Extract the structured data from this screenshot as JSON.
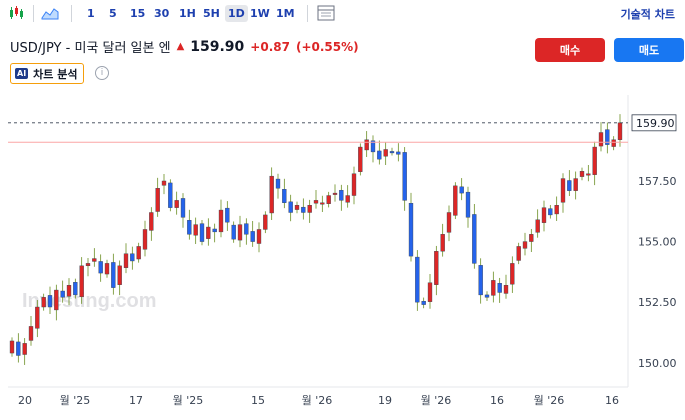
{
  "toolbar": {
    "timeframes": [
      "1",
      "5",
      "15",
      "30",
      "1H",
      "5H",
      "1D",
      "1W",
      "1M"
    ],
    "active_timeframe": "1D",
    "advanced_chart": "기술적 차트"
  },
  "symbol": {
    "name": "USD/JPY - 미국 달러 일본 엔",
    "price": "159.90",
    "change": "+0.87",
    "change_pct": "(+0.55%)"
  },
  "actions": {
    "buy": "매수",
    "sell": "매도"
  },
  "ai": {
    "badge": "AI",
    "label": "차트 분석"
  },
  "watermark": "Investing.com",
  "colors": {
    "up": "#dc2626",
    "down": "#2563eb",
    "buy": "#dc2626",
    "sell": "#1877f2",
    "last_line": "#fca5a5"
  },
  "chart_data": {
    "type": "candlestick",
    "y_ticks": [
      "157.50",
      "155.00",
      "152.50",
      "150.00"
    ],
    "y_range": [
      149.0,
      160.8
    ],
    "last_price_label": "159.90",
    "x_ticks": [
      "20",
      "월 '25",
      "17",
      "월 '25",
      "15",
      "월 '26",
      "19",
      "월 '26",
      "16",
      "월 '26",
      "16"
    ],
    "closes": [
      150.9,
      150.3,
      150.8,
      151.5,
      152.3,
      152.7,
      152.3,
      153.0,
      152.7,
      153.2,
      152.8,
      154.0,
      154.1,
      154.3,
      153.7,
      154.1,
      153.1,
      154.0,
      154.5,
      154.2,
      154.8,
      155.5,
      156.2,
      157.2,
      157.5,
      156.4,
      156.7,
      156.0,
      155.3,
      155.7,
      155.0,
      155.6,
      155.4,
      156.3,
      155.8,
      155.1,
      155.7,
      155.3,
      155.0,
      155.5,
      156.1,
      157.7,
      157.2,
      156.6,
      156.2,
      156.5,
      156.2,
      156.5,
      156.7,
      156.6,
      156.9,
      157.0,
      156.7,
      156.9,
      157.8,
      158.9,
      159.2,
      158.7,
      158.4,
      158.8,
      158.7,
      158.6,
      156.7,
      154.4,
      152.5,
      152.4,
      153.3,
      154.6,
      155.3,
      156.2,
      157.3,
      157.0,
      156.0,
      154.1,
      152.8,
      152.7,
      153.4,
      152.9,
      153.2,
      154.1,
      154.8,
      155.0,
      155.3,
      155.9,
      156.4,
      156.1,
      156.5,
      157.6,
      157.1,
      157.6,
      157.9,
      157.8,
      158.9,
      159.5,
      159.0,
      159.2,
      159.9
    ]
  }
}
